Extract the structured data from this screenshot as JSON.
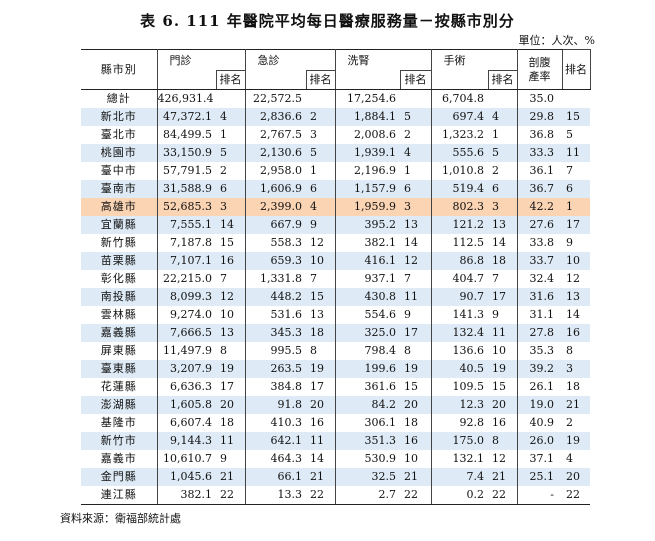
{
  "title": "表 6.   111 年醫院平均每日醫療服務量－按縣市別分",
  "unit": "單位：人次、%",
  "headers": {
    "county": "縣市別",
    "outpatient": "門診",
    "emergency": "急診",
    "dialysis": "洗腎",
    "surgery": "手術",
    "cesarean_line1": "剖腹",
    "cesarean_line2": "產率",
    "rank": "排名"
  },
  "rows": [
    {
      "county": "總計",
      "outpatient": "426,931.4",
      "outpatient_rank": "",
      "emergency": "22,572.5",
      "emergency_rank": "",
      "dialysis": "17,254.6",
      "dialysis_rank": "",
      "surgery": "6,704.8",
      "surgery_rank": "",
      "cesarean": "35.0",
      "cesarean_rank": ""
    },
    {
      "county": "新北市",
      "outpatient": "47,372.1",
      "outpatient_rank": "4",
      "emergency": "2,836.6",
      "emergency_rank": "2",
      "dialysis": "1,884.1",
      "dialysis_rank": "5",
      "surgery": "697.4",
      "surgery_rank": "4",
      "cesarean": "29.8",
      "cesarean_rank": "15"
    },
    {
      "county": "臺北市",
      "outpatient": "84,499.5",
      "outpatient_rank": "1",
      "emergency": "2,767.5",
      "emergency_rank": "3",
      "dialysis": "2,008.6",
      "dialysis_rank": "2",
      "surgery": "1,323.2",
      "surgery_rank": "1",
      "cesarean": "36.8",
      "cesarean_rank": "5"
    },
    {
      "county": "桃園市",
      "outpatient": "33,150.9",
      "outpatient_rank": "5",
      "emergency": "2,130.6",
      "emergency_rank": "5",
      "dialysis": "1,939.1",
      "dialysis_rank": "4",
      "surgery": "555.6",
      "surgery_rank": "5",
      "cesarean": "33.3",
      "cesarean_rank": "11"
    },
    {
      "county": "臺中市",
      "outpatient": "57,791.5",
      "outpatient_rank": "2",
      "emergency": "2,958.0",
      "emergency_rank": "1",
      "dialysis": "2,196.9",
      "dialysis_rank": "1",
      "surgery": "1,010.8",
      "surgery_rank": "2",
      "cesarean": "36.1",
      "cesarean_rank": "7"
    },
    {
      "county": "臺南市",
      "outpatient": "31,588.9",
      "outpatient_rank": "6",
      "emergency": "1,606.9",
      "emergency_rank": "6",
      "dialysis": "1,157.9",
      "dialysis_rank": "6",
      "surgery": "519.4",
      "surgery_rank": "6",
      "cesarean": "36.7",
      "cesarean_rank": "6"
    },
    {
      "county": "高雄市",
      "outpatient": "52,685.3",
      "outpatient_rank": "3",
      "emergency": "2,399.0",
      "emergency_rank": "4",
      "dialysis": "1,959.9",
      "dialysis_rank": "3",
      "surgery": "802.3",
      "surgery_rank": "3",
      "cesarean": "42.2",
      "cesarean_rank": "1"
    },
    {
      "county": "宜蘭縣",
      "outpatient": "7,555.1",
      "outpatient_rank": "14",
      "emergency": "667.9",
      "emergency_rank": "9",
      "dialysis": "395.2",
      "dialysis_rank": "13",
      "surgery": "121.2",
      "surgery_rank": "13",
      "cesarean": "27.6",
      "cesarean_rank": "17"
    },
    {
      "county": "新竹縣",
      "outpatient": "7,187.8",
      "outpatient_rank": "15",
      "emergency": "558.3",
      "emergency_rank": "12",
      "dialysis": "382.1",
      "dialysis_rank": "14",
      "surgery": "112.5",
      "surgery_rank": "14",
      "cesarean": "33.8",
      "cesarean_rank": "9"
    },
    {
      "county": "苗栗縣",
      "outpatient": "7,107.1",
      "outpatient_rank": "16",
      "emergency": "659.3",
      "emergency_rank": "10",
      "dialysis": "416.1",
      "dialysis_rank": "12",
      "surgery": "86.8",
      "surgery_rank": "18",
      "cesarean": "33.7",
      "cesarean_rank": "10"
    },
    {
      "county": "彰化縣",
      "outpatient": "22,215.0",
      "outpatient_rank": "7",
      "emergency": "1,331.8",
      "emergency_rank": "7",
      "dialysis": "937.1",
      "dialysis_rank": "7",
      "surgery": "404.7",
      "surgery_rank": "7",
      "cesarean": "32.4",
      "cesarean_rank": "12"
    },
    {
      "county": "南投縣",
      "outpatient": "8,099.3",
      "outpatient_rank": "12",
      "emergency": "448.2",
      "emergency_rank": "15",
      "dialysis": "430.8",
      "dialysis_rank": "11",
      "surgery": "90.7",
      "surgery_rank": "17",
      "cesarean": "31.6",
      "cesarean_rank": "13"
    },
    {
      "county": "雲林縣",
      "outpatient": "9,274.0",
      "outpatient_rank": "10",
      "emergency": "531.6",
      "emergency_rank": "13",
      "dialysis": "554.6",
      "dialysis_rank": "9",
      "surgery": "141.3",
      "surgery_rank": "9",
      "cesarean": "31.1",
      "cesarean_rank": "14"
    },
    {
      "county": "嘉義縣",
      "outpatient": "7,666.5",
      "outpatient_rank": "13",
      "emergency": "345.3",
      "emergency_rank": "18",
      "dialysis": "325.0",
      "dialysis_rank": "17",
      "surgery": "132.4",
      "surgery_rank": "11",
      "cesarean": "27.8",
      "cesarean_rank": "16"
    },
    {
      "county": "屏東縣",
      "outpatient": "11,497.9",
      "outpatient_rank": "8",
      "emergency": "995.5",
      "emergency_rank": "8",
      "dialysis": "798.4",
      "dialysis_rank": "8",
      "surgery": "136.6",
      "surgery_rank": "10",
      "cesarean": "35.3",
      "cesarean_rank": "8"
    },
    {
      "county": "臺東縣",
      "outpatient": "3,207.9",
      "outpatient_rank": "19",
      "emergency": "263.5",
      "emergency_rank": "19",
      "dialysis": "199.6",
      "dialysis_rank": "19",
      "surgery": "40.5",
      "surgery_rank": "19",
      "cesarean": "39.2",
      "cesarean_rank": "3"
    },
    {
      "county": "花蓮縣",
      "outpatient": "6,636.3",
      "outpatient_rank": "17",
      "emergency": "384.8",
      "emergency_rank": "17",
      "dialysis": "361.6",
      "dialysis_rank": "15",
      "surgery": "109.5",
      "surgery_rank": "15",
      "cesarean": "26.1",
      "cesarean_rank": "18"
    },
    {
      "county": "澎湖縣",
      "outpatient": "1,605.8",
      "outpatient_rank": "20",
      "emergency": "91.8",
      "emergency_rank": "20",
      "dialysis": "84.2",
      "dialysis_rank": "20",
      "surgery": "12.3",
      "surgery_rank": "20",
      "cesarean": "19.0",
      "cesarean_rank": "21"
    },
    {
      "county": "基隆市",
      "outpatient": "6,607.4",
      "outpatient_rank": "18",
      "emergency": "410.3",
      "emergency_rank": "16",
      "dialysis": "306.1",
      "dialysis_rank": "18",
      "surgery": "92.8",
      "surgery_rank": "16",
      "cesarean": "40.9",
      "cesarean_rank": "2"
    },
    {
      "county": "新竹市",
      "outpatient": "9,144.3",
      "outpatient_rank": "11",
      "emergency": "642.1",
      "emergency_rank": "11",
      "dialysis": "351.3",
      "dialysis_rank": "16",
      "surgery": "175.0",
      "surgery_rank": "8",
      "cesarean": "26.0",
      "cesarean_rank": "19"
    },
    {
      "county": "嘉義市",
      "outpatient": "10,610.7",
      "outpatient_rank": "9",
      "emergency": "464.3",
      "emergency_rank": "14",
      "dialysis": "530.9",
      "dialysis_rank": "10",
      "surgery": "132.1",
      "surgery_rank": "12",
      "cesarean": "37.1",
      "cesarean_rank": "4"
    },
    {
      "county": "金門縣",
      "outpatient": "1,045.6",
      "outpatient_rank": "21",
      "emergency": "66.1",
      "emergency_rank": "21",
      "dialysis": "32.5",
      "dialysis_rank": "21",
      "surgery": "7.4",
      "surgery_rank": "21",
      "cesarean": "25.1",
      "cesarean_rank": "20"
    },
    {
      "county": "連江縣",
      "outpatient": "382.1",
      "outpatient_rank": "22",
      "emergency": "13.3",
      "emergency_rank": "22",
      "dialysis": "2.7",
      "dialysis_rank": "22",
      "surgery": "0.2",
      "surgery_rank": "22",
      "cesarean": "-",
      "cesarean_rank": "22"
    }
  ],
  "source": "資料來源：衛福部統計處"
}
